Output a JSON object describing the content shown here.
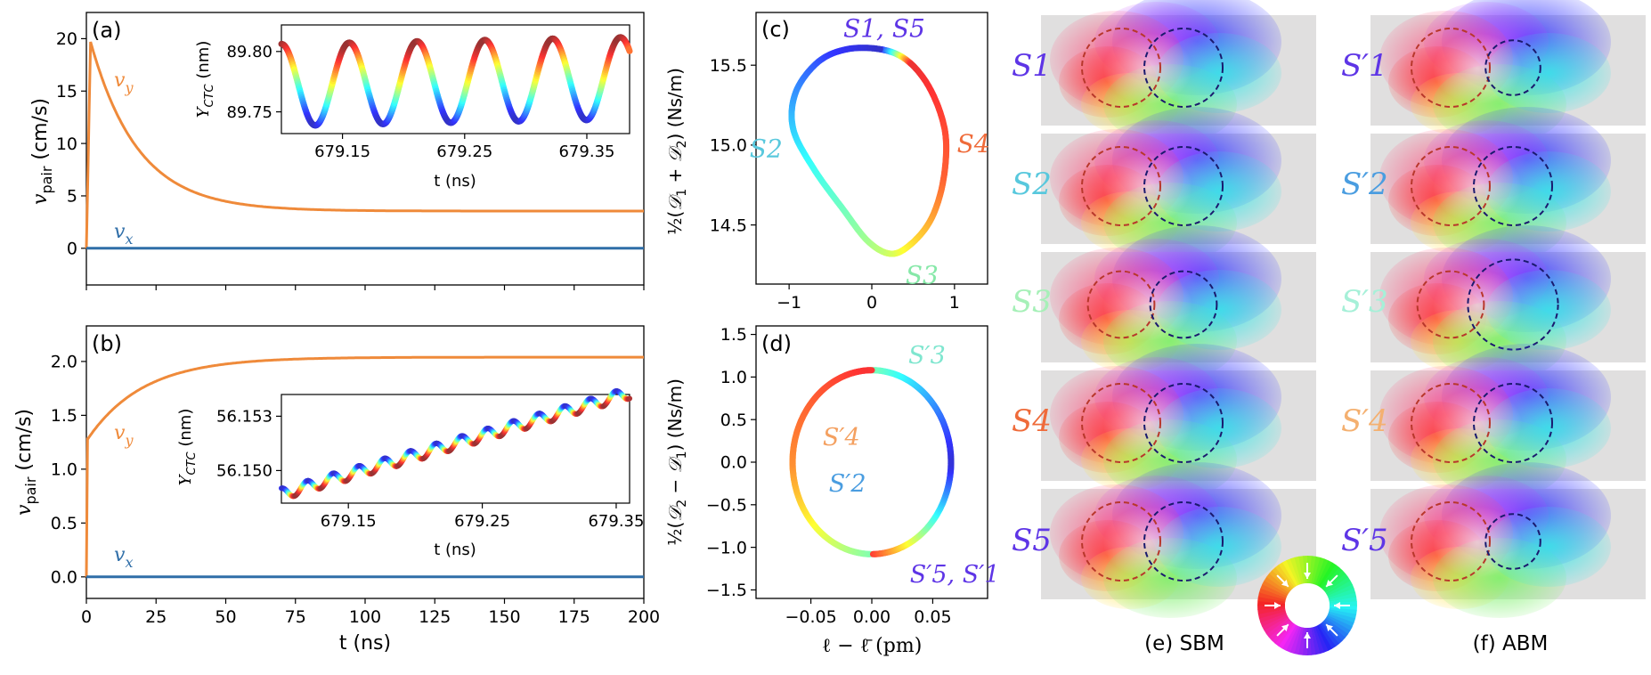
{
  "chart_data": [
    {
      "id": "a",
      "panel_label": "(a)",
      "type": "line",
      "ylabel": "v_pair (cm/s)",
      "xlim": [
        0,
        200
      ],
      "ylim": [
        -3.5,
        22.5
      ],
      "yticks": [
        0,
        5,
        10,
        15,
        20
      ],
      "ytick_labels": [
        "0",
        "5",
        "10",
        "15",
        "20"
      ],
      "series": [
        {
          "name": "v_y",
          "color": "#ef8a3a",
          "model": "exp_decay",
          "start": 19.7,
          "end": 3.55,
          "tau_ns": 17,
          "rise_ns": 1.5
        },
        {
          "name": "v_x",
          "color": "#2f6ea8",
          "model": "constant",
          "value": 0
        }
      ],
      "inset": {
        "xlabel": "t (ns)",
        "ylabel": "Y_CTC (nm)",
        "xlim": [
          679.1,
          679.385
        ],
        "ylim": [
          89.732,
          89.822
        ],
        "xticks": [
          679.15,
          679.25,
          679.35
        ],
        "xtick_labels": [
          "679.15",
          "679.25",
          "679.35"
        ],
        "yticks": [
          89.75,
          89.8
        ],
        "ytick_labels": [
          "89.75",
          "89.80"
        ],
        "model": "oscillation",
        "mean": 89.775,
        "amplitude": 0.034,
        "drift_per_ns": 0.02,
        "period_ns": 0.0555,
        "color_scale": "jet-phase"
      }
    },
    {
      "id": "b",
      "panel_label": "(b)",
      "type": "line",
      "xlabel": "t (ns)",
      "ylabel": "v_pair (cm/s)",
      "xlim": [
        0,
        200
      ],
      "ylim": [
        -0.2,
        2.33
      ],
      "xticks": [
        0,
        25,
        50,
        75,
        100,
        125,
        150,
        175,
        200
      ],
      "xtick_labels": [
        "0",
        "25",
        "50",
        "75",
        "100",
        "125",
        "150",
        "175",
        "200"
      ],
      "yticks": [
        0,
        0.5,
        1.0,
        1.5,
        2.0
      ],
      "ytick_labels": [
        "0.0",
        "0.5",
        "1.0",
        "1.5",
        "2.0"
      ],
      "series": [
        {
          "name": "v_y",
          "color": "#ef8a3a",
          "model": "exp_rise",
          "start": 1.28,
          "end": 2.04,
          "tau_ns": 20
        },
        {
          "name": "v_x",
          "color": "#2f6ea8",
          "model": "constant",
          "value": 0
        }
      ],
      "inset": {
        "xlabel": "t (ns)",
        "ylabel": "Y_CTC (nm)",
        "xlim": [
          679.1,
          679.36
        ],
        "ylim": [
          56.1482,
          56.1542
        ],
        "xticks": [
          679.15,
          679.25,
          679.35
        ],
        "xtick_labels": [
          "679.15",
          "679.25",
          "679.35"
        ],
        "yticks": [
          56.15,
          56.153
        ],
        "ytick_labels": [
          "56.150",
          "56.153"
        ],
        "model": "oscillation",
        "start_value": 56.1487,
        "slope_per_ns": 0.0215,
        "amplitude": 0.00032,
        "period_ns": 0.0192,
        "color_scale": "jet-phase"
      }
    },
    {
      "id": "c",
      "panel_label": "(c)",
      "type": "line",
      "ylabel": "½(D1 + D2) (Ns/m)",
      "xlim": [
        -1.4,
        1.4
      ],
      "ylim": [
        14.13,
        15.83
      ],
      "xticks": [
        -1,
        0,
        1
      ],
      "xtick_labels": [
        "−1",
        "0",
        "1"
      ],
      "yticks": [
        14.5,
        15.0,
        15.5
      ],
      "ytick_labels": [
        "14.5",
        "15.0",
        "15.5"
      ],
      "loop_points": [
        [
          0.1,
          15.6
        ],
        [
          0.4,
          15.54
        ],
        [
          0.65,
          15.4
        ],
        [
          0.83,
          15.2
        ],
        [
          0.9,
          15.0
        ],
        [
          0.85,
          14.74
        ],
        [
          0.7,
          14.52
        ],
        [
          0.45,
          14.37
        ],
        [
          0.22,
          14.32
        ],
        [
          -0.05,
          14.4
        ],
        [
          -0.35,
          14.6
        ],
        [
          -0.7,
          14.85
        ],
        [
          -0.95,
          15.1
        ],
        [
          -0.92,
          15.33
        ],
        [
          -0.65,
          15.52
        ],
        [
          -0.3,
          15.6
        ]
      ],
      "states": [
        {
          "label": "S1, S5",
          "x": 0.15,
          "y": 15.6,
          "color": "#5e35e6"
        },
        {
          "label": "S4",
          "x": 0.9,
          "y": 15.0,
          "color": "#ef6b3a"
        },
        {
          "label": "S3",
          "x": 0.3,
          "y": 14.3,
          "color": "#86e8a8"
        },
        {
          "label": "S2",
          "x": -0.95,
          "y": 14.97,
          "color": "#58c8dd"
        }
      ]
    },
    {
      "id": "d",
      "panel_label": "(d)",
      "type": "line",
      "xlabel": "ℓ − ℓ̄ (pm)",
      "ylabel": "½(D2 − D1) (Ns/m)",
      "xlim": [
        -0.095,
        0.095
      ],
      "ylim": [
        -1.6,
        1.6
      ],
      "xticks": [
        -0.05,
        0,
        0.05
      ],
      "xtick_labels": [
        "−0.05",
        "0.00",
        "0.05"
      ],
      "yticks": [
        -1.5,
        -1.0,
        -0.5,
        0,
        0.5,
        1.0,
        1.5
      ],
      "ytick_labels": [
        "−1.5",
        "−1.0",
        "−0.5",
        "0.0",
        "0.5",
        "1.0",
        "1.5"
      ],
      "curve": {
        "x_amplitude": 0.065,
        "y_amplitude": 1.08
      },
      "states": [
        {
          "label": "S′3",
          "x": 0.03,
          "y": 1.1,
          "color": "#7fe6cf"
        },
        {
          "label": "S′4",
          "x": -0.025,
          "y": 0.2,
          "color": "#f4a060"
        },
        {
          "label": "S′2",
          "x": -0.02,
          "y": -0.2,
          "color": "#4a9de0"
        },
        {
          "label": "S′5, S′1",
          "x": 0.04,
          "y": -1.12,
          "color": "#5e35e6"
        }
      ]
    }
  ],
  "state_labels": {
    "sbm": [
      {
        "label": "S1",
        "color": "#5e35e6"
      },
      {
        "label": "S2",
        "color": "#58c8dd"
      },
      {
        "label": "S3",
        "color": "#a6f0b8"
      },
      {
        "label": "S4",
        "color": "#ef6b3a"
      },
      {
        "label": "S5",
        "color": "#5e35e6"
      }
    ],
    "abm": [
      {
        "label": "S′1",
        "color": "#5e35e6"
      },
      {
        "label": "S′2",
        "color": "#4a9de0"
      },
      {
        "label": "S′3",
        "color": "#a6f0d8"
      },
      {
        "label": "S′4",
        "color": "#f4b070"
      },
      {
        "label": "S′5",
        "color": "#5e35e6"
      }
    ]
  },
  "skyrmion_rows": [
    {
      "sbm_left_r": 1.0,
      "sbm_right_r": 1.0,
      "abm_left_r": 1.0,
      "abm_right_r": 0.7
    },
    {
      "sbm_left_r": 1.0,
      "sbm_right_r": 1.0,
      "abm_left_r": 1.0,
      "abm_right_r": 1.0
    },
    {
      "sbm_left_r": 0.85,
      "sbm_right_r": 0.85,
      "abm_left_r": 0.85,
      "abm_right_r": 1.15
    },
    {
      "sbm_left_r": 1.0,
      "sbm_right_r": 1.0,
      "abm_left_r": 1.0,
      "abm_right_r": 1.0
    },
    {
      "sbm_left_r": 1.0,
      "sbm_right_r": 1.0,
      "abm_left_r": 1.0,
      "abm_right_r": 0.7
    }
  ],
  "captions": {
    "sbm": "(e) SBM",
    "abm": "(f) ABM"
  },
  "labels": {
    "vy": "v",
    "vy_sub": "y",
    "vx": "v",
    "vx_sub": "x",
    "vpair": "v",
    "vpair_sub": "pair",
    "vpair_unit": " (cm/s)",
    "ctc_Y": "Y",
    "ctc_sub": "CTC",
    "ctc_unit": " (nm)"
  }
}
